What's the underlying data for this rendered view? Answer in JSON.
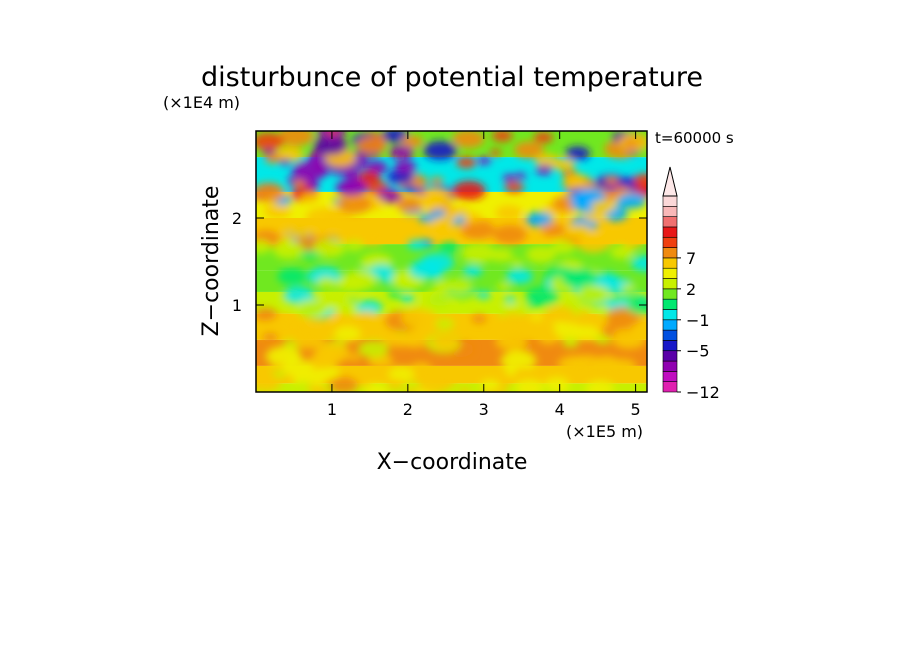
{
  "chart_data": {
    "type": "heatmap",
    "title": "disturbunce of potential temperature",
    "xlabel": "X−coordinate",
    "ylabel": "Z−coordinate",
    "x_unit": "(×1E5 m)",
    "y_unit": "(×1E4 m)",
    "time_label": "t=60000 s",
    "xlim": [
      0,
      5.15
    ],
    "ylim": [
      0,
      3.0
    ],
    "x_ticks": [
      1,
      2,
      3,
      4,
      5
    ],
    "x_tick_labels": [
      "1",
      "2",
      "3",
      "4",
      "5"
    ],
    "y_ticks": [
      1,
      2
    ],
    "y_tick_labels": [
      "1",
      "2"
    ],
    "colorbar": {
      "levels": [
        -12,
        -10,
        -8,
        -7,
        -5,
        -4,
        -3,
        -1,
        0,
        1,
        2,
        3,
        5,
        7,
        8,
        10
      ],
      "labeled_values": [
        7,
        2,
        -1,
        -5,
        -12
      ],
      "labels": [
        "7",
        "2",
        "−1",
        "−5",
        "−12"
      ],
      "extend": "max",
      "colors": [
        "#e020b0",
        "#c00cc0",
        "#9000b0",
        "#5a00a8",
        "#1818c8",
        "#0050e0",
        "#00aaff",
        "#00e8e8",
        "#00e870",
        "#70e820",
        "#c8f000",
        "#f0f000",
        "#f8c800",
        "#f08a10",
        "#f04010",
        "#e81818",
        "#f07070",
        "#f8b8b8",
        "#fbd8d8"
      ]
    },
    "bands": [
      {
        "z": [
          0.0,
          0.1
        ],
        "value": 1.5
      },
      {
        "z": [
          0.1,
          0.3
        ],
        "value": 3.5
      },
      {
        "z": [
          0.3,
          0.6
        ],
        "value": 5.0
      },
      {
        "z": [
          0.6,
          0.9
        ],
        "value": 3.5
      },
      {
        "z": [
          0.9,
          1.15
        ],
        "value": 1.0
      },
      {
        "z": [
          1.15,
          1.4
        ],
        "value": 0.2
      },
      {
        "z": [
          1.4,
          1.7
        ],
        "value": 0.6
      },
      {
        "z": [
          1.7,
          2.0
        ],
        "value": 3.0
      },
      {
        "z": [
          2.0,
          2.3
        ],
        "value": 2.0
      },
      {
        "z": [
          2.3,
          2.7
        ],
        "value": -2.0
      },
      {
        "z": [
          2.7,
          3.0
        ],
        "value": 0.5
      }
    ]
  }
}
